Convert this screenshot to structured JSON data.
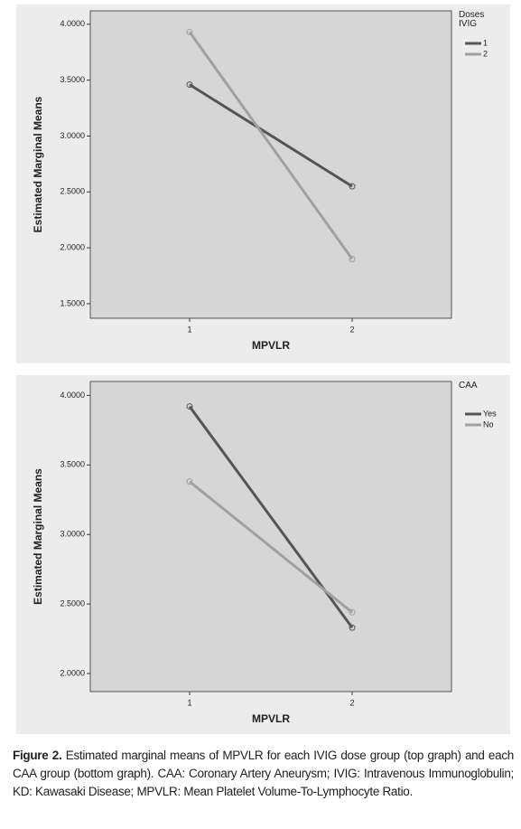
{
  "chart_data": [
    {
      "type": "line",
      "y_label": "Estimated Marginal Means",
      "x_label": "MPVLR",
      "legend_title": "Doses IVIG",
      "categories": [
        "1",
        "2"
      ],
      "series": [
        {
          "name": "1",
          "color": "#555555",
          "values": [
            3.46,
            2.55
          ]
        },
        {
          "name": "2",
          "color": "#a0a0a0",
          "values": [
            3.93,
            1.9
          ]
        }
      ],
      "ylim": [
        1.37,
        4.12
      ],
      "yticks": [
        {
          "value": 1.5,
          "label": "1.5000"
        },
        {
          "value": 2.0,
          "label": "2.0000"
        },
        {
          "value": 2.5,
          "label": "2.5000"
        },
        {
          "value": 3.0,
          "label": "3.0000"
        },
        {
          "value": 3.5,
          "label": "3.5000"
        },
        {
          "value": 4.0,
          "label": "4.0000"
        }
      ]
    },
    {
      "type": "line",
      "y_label": "Estimated Marginal Means",
      "x_label": "MPVLR",
      "legend_title": "CAA",
      "categories": [
        "1",
        "2"
      ],
      "series": [
        {
          "name": "Yes",
          "color": "#555555",
          "values": [
            3.92,
            2.33
          ]
        },
        {
          "name": "No",
          "color": "#a0a0a0",
          "values": [
            3.38,
            2.44
          ]
        }
      ],
      "ylim": [
        1.87,
        4.1
      ],
      "yticks": [
        {
          "value": 2.0,
          "label": "2.0000"
        },
        {
          "value": 2.5,
          "label": "2.5000"
        },
        {
          "value": 3.0,
          "label": "3.0000"
        },
        {
          "value": 3.5,
          "label": "3.5000"
        },
        {
          "value": 4.0,
          "label": "4.0000"
        }
      ]
    }
  ],
  "caption": {
    "label": "Figure 2.",
    "text": "Estimated marginal means of MPVLR for each IVIG dose group (top graph) and each CAA group (bottom graph). CAA: Coronary Artery Aneurysm; IVIG: Intravenous Immunoglobulin; KD: Kawasaki Disease; MPVLR: Mean Platelet Volume-To-Lymphocyte Ratio."
  }
}
